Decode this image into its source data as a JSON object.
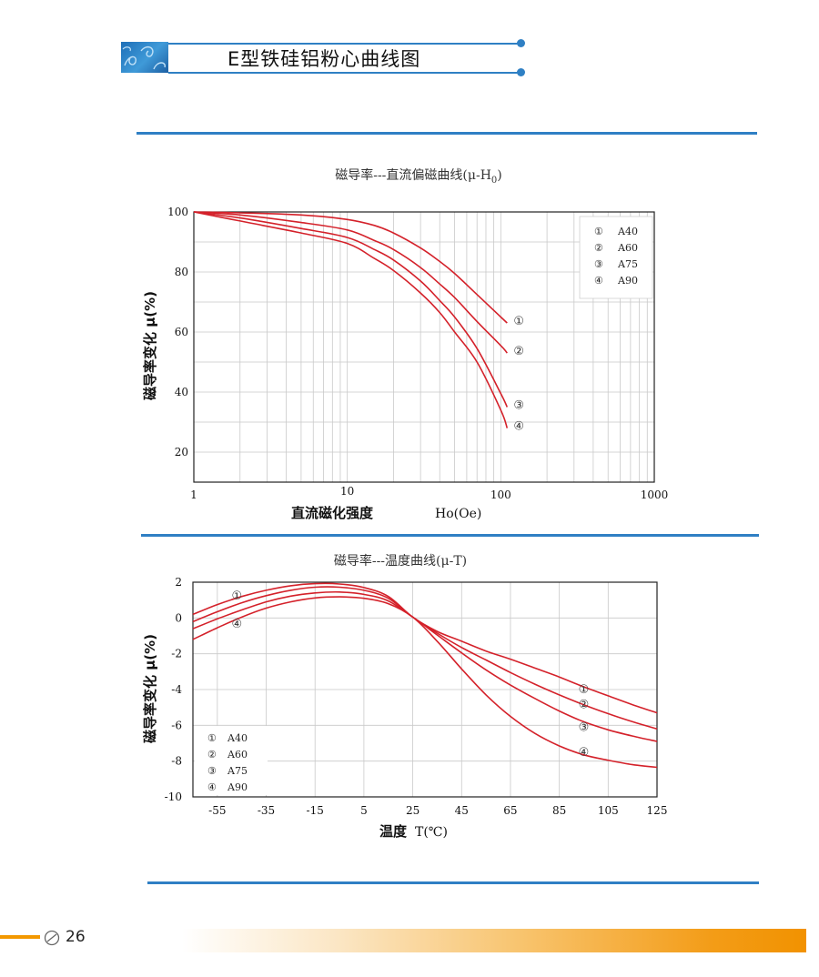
{
  "page": {
    "title": "E型铁硅铝粉心曲线图",
    "page_number": "26"
  },
  "chart_data": [
    {
      "type": "line",
      "title": "磁导率---直流偏磁曲线(μ-H",
      "title_subscript": "0",
      "title_suffix": ")",
      "xlabel": "直流磁化强度",
      "xlabel_unit": "Ho(Oe)",
      "ylabel": "磁导率变化 μ(%)",
      "x_scale": "log",
      "xlim": [
        1,
        1000
      ],
      "ylim": [
        10,
        100
      ],
      "x_ticks": [
        "1",
        "10",
        "100",
        "1000"
      ],
      "y_ticks": [
        "20",
        "40",
        "60",
        "80",
        "100"
      ],
      "legend": [
        {
          "marker": "①",
          "name": "A40"
        },
        {
          "marker": "②",
          "name": "A60"
        },
        {
          "marker": "③",
          "name": "A75"
        },
        {
          "marker": "④",
          "name": "A90"
        }
      ],
      "legend_position": "top-right",
      "grid": true,
      "series": [
        {
          "name": "A40",
          "marker": "①",
          "x": [
            1,
            2,
            5,
            10,
            15,
            20,
            30,
            40,
            50,
            70,
            100,
            110
          ],
          "y": [
            100,
            99.7,
            99,
            97.5,
            95.5,
            93,
            88,
            83.5,
            79.5,
            72.5,
            65,
            63
          ]
        },
        {
          "name": "A60",
          "marker": "②",
          "x": [
            1,
            2,
            5,
            10,
            15,
            20,
            30,
            40,
            50,
            70,
            100,
            110
          ],
          "y": [
            100,
            99,
            96.5,
            94,
            90.5,
            87.5,
            81.5,
            76,
            71.5,
            63.5,
            55.5,
            53
          ]
        },
        {
          "name": "A75",
          "marker": "③",
          "x": [
            1,
            2,
            5,
            10,
            15,
            20,
            30,
            40,
            50,
            70,
            100,
            110
          ],
          "y": [
            100,
            98,
            94.5,
            91.5,
            87.5,
            84,
            77,
            70.5,
            65,
            54.5,
            39.5,
            35
          ]
        },
        {
          "name": "A90",
          "marker": "④",
          "x": [
            1,
            2,
            5,
            10,
            15,
            20,
            30,
            40,
            50,
            70,
            100,
            110
          ],
          "y": [
            100,
            97,
            93,
            89.5,
            84.5,
            80.5,
            73,
            66.5,
            60,
            50,
            34,
            28
          ]
        }
      ]
    },
    {
      "type": "line",
      "title": "磁导率---温度曲线(μ-T)",
      "xlabel": "温度",
      "xlabel_unit": "T(℃)",
      "ylabel": "磁导率变化 μ(%)",
      "xlim": [
        -65,
        125
      ],
      "ylim": [
        -10,
        2
      ],
      "x_ticks": [
        "-55",
        "-35",
        "-15",
        "5",
        "25",
        "45",
        "65",
        "85",
        "105",
        "125"
      ],
      "y_ticks": [
        "2",
        "0",
        "-2",
        "-4",
        "-6",
        "-8",
        "-10"
      ],
      "legend": [
        {
          "marker": "①",
          "name": "A40"
        },
        {
          "marker": "②",
          "name": "A60"
        },
        {
          "marker": "③",
          "name": "A75"
        },
        {
          "marker": "④",
          "name": "A90"
        }
      ],
      "legend_position": "bottom-left",
      "grid": true,
      "series": [
        {
          "name": "A40",
          "marker": "①",
          "x": [
            -65,
            -55,
            -45,
            -35,
            -25,
            -15,
            -5,
            5,
            15,
            25,
            35,
            45,
            55,
            65,
            75,
            85,
            95,
            105,
            115,
            125
          ],
          "y": [
            0.2,
            0.75,
            1.2,
            1.55,
            1.8,
            1.92,
            1.9,
            1.7,
            1.2,
            0.05,
            -0.75,
            -1.3,
            -1.85,
            -2.3,
            -2.8,
            -3.3,
            -3.85,
            -4.35,
            -4.85,
            -5.3
          ]
        },
        {
          "name": "A60",
          "marker": "②",
          "x": [
            -65,
            -55,
            -45,
            -35,
            -25,
            -15,
            -5,
            5,
            15,
            25,
            35,
            45,
            55,
            65,
            75,
            85,
            95,
            105,
            115,
            125
          ],
          "y": [
            -0.2,
            0.35,
            0.85,
            1.25,
            1.55,
            1.72,
            1.72,
            1.55,
            1.1,
            0.05,
            -0.85,
            -1.65,
            -2.35,
            -3.05,
            -3.7,
            -4.3,
            -4.85,
            -5.35,
            -5.8,
            -6.2
          ]
        },
        {
          "name": "A75",
          "marker": "③",
          "x": [
            -65,
            -55,
            -45,
            -35,
            -25,
            -15,
            -5,
            5,
            15,
            25,
            35,
            45,
            55,
            65,
            75,
            85,
            95,
            105,
            115,
            125
          ],
          "y": [
            -0.6,
            -0.05,
            0.45,
            0.9,
            1.22,
            1.4,
            1.45,
            1.32,
            0.95,
            0.05,
            -0.95,
            -1.95,
            -2.9,
            -3.75,
            -4.5,
            -5.2,
            -5.8,
            -6.25,
            -6.6,
            -6.9
          ]
        },
        {
          "name": "A90",
          "marker": "④",
          "x": [
            -65,
            -55,
            -45,
            -35,
            -25,
            -15,
            -5,
            5,
            15,
            25,
            35,
            45,
            55,
            65,
            75,
            85,
            95,
            105,
            115,
            125
          ],
          "y": [
            -1.2,
            -0.55,
            0.05,
            0.55,
            0.9,
            1.12,
            1.18,
            1.1,
            0.8,
            0.05,
            -1.3,
            -2.85,
            -4.3,
            -5.5,
            -6.45,
            -7.15,
            -7.65,
            -7.95,
            -8.2,
            -8.35
          ]
        }
      ]
    }
  ]
}
